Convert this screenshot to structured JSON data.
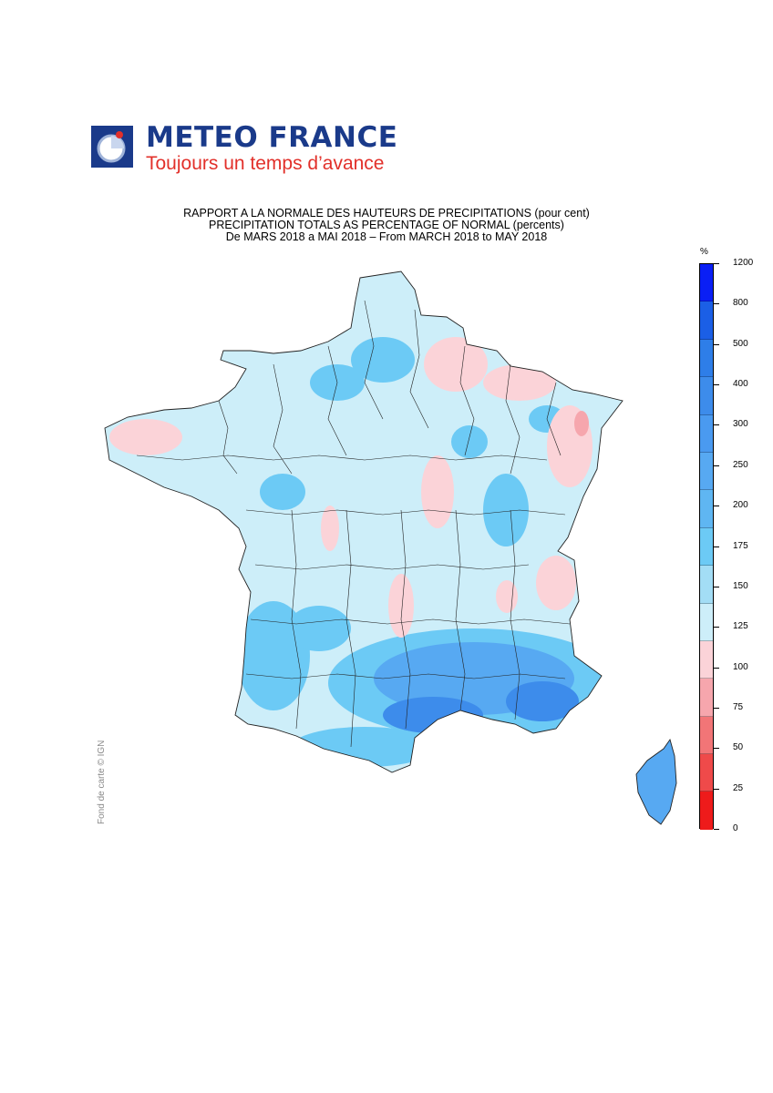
{
  "brand": {
    "name": "METEO FRANCE",
    "tagline": "Toujours un temps d’avance"
  },
  "title": {
    "line1": "RAPPORT A LA NORMALE DES HAUTEURS DE PRECIPITATIONS (pour cent)",
    "line2": "PRECIPITATION TOTALS AS PERCENTAGE OF NORMAL (percents)",
    "line3": "De MARS 2018 a MAI 2018 – From MARCH 2018 to MAY 2018"
  },
  "credit": "Fond de carte © IGN",
  "legend": {
    "unit": "%",
    "ticks": [
      "1200",
      "800",
      "500",
      "400",
      "300",
      "250",
      "200",
      "175",
      "150",
      "125",
      "100",
      "75",
      "50",
      "25",
      "0"
    ],
    "colors": [
      "#0a1ff5",
      "#1b5fe6",
      "#2e7ee8",
      "#3d8ceb",
      "#4a9af0",
      "#57a9f2",
      "#5fb6f2",
      "#6ccaf5",
      "#a3ddf5",
      "#cdeef9",
      "#fbd3d8",
      "#f6a6ad",
      "#f27577",
      "#ef4a4a",
      "#ee1b1b"
    ]
  },
  "map_colors": {
    "normal": "#cdeef9",
    "wet": "#6ccaf5",
    "wetter": "#57a9f2",
    "wettest": "#3d8ceb",
    "dry": "#fbd3d8",
    "drier": "#f6a6ad",
    "border": "#222222"
  }
}
